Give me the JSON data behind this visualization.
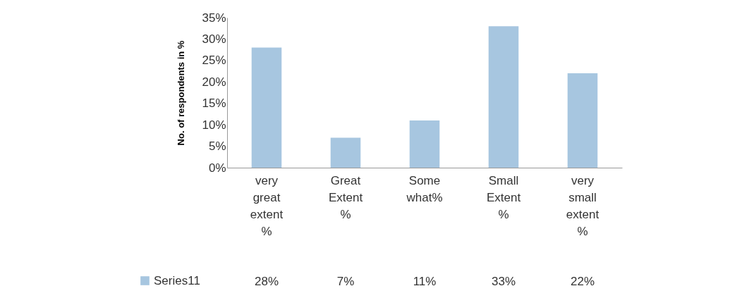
{
  "chart_data": {
    "type": "bar",
    "ylabel": "No. of respondents in %",
    "categories": [
      "very great extent %",
      "Great Extent %",
      "Some what%",
      "Small Extent %",
      "very small extent %"
    ],
    "series": [
      {
        "name": "Series11",
        "color": "#a7c6e0",
        "values": [
          28,
          7,
          11,
          33,
          22
        ],
        "value_labels": [
          "28%",
          "7%",
          "11%",
          "33%",
          "22%"
        ]
      }
    ],
    "ylim": [
      0,
      35
    ],
    "yticks": [
      {
        "value": 0,
        "label": "0%"
      },
      {
        "value": 5,
        "label": "5%"
      },
      {
        "value": 10,
        "label": "10%"
      },
      {
        "value": 15,
        "label": "15%"
      },
      {
        "value": 20,
        "label": "20%"
      },
      {
        "value": 25,
        "label": "25%"
      },
      {
        "value": 30,
        "label": "30%"
      },
      {
        "value": 35,
        "label": "35%"
      }
    ],
    "grid": false,
    "legend": "bottom left"
  }
}
